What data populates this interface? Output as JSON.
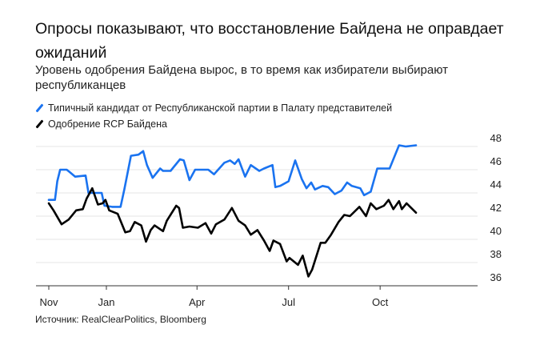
{
  "title": "Опросы показывают, что восстановление Байдена не оправдает ожиданий",
  "subtitle": "Уровень одобрения Байдена вырос, в то время как избиратели выбирают республиканцев",
  "source": "Источник: RealClearPolitics, Bloomberg",
  "chart_data": {
    "type": "line",
    "title": "Опросы показывают, что восстановление Байдена не оправдает ожиданий",
    "xlabel": "",
    "ylabel": "",
    "x_unit": "days since Nov 1",
    "xlim": [
      0,
      389
    ],
    "ylim": [
      36,
      48
    ],
    "yticks": [
      36,
      38,
      40,
      42,
      44,
      46,
      48
    ],
    "xticks": [
      {
        "label": "Nov",
        "day": 0
      },
      {
        "label": "Jan",
        "day": 61
      },
      {
        "label": "Apr",
        "day": 157
      },
      {
        "label": "Jul",
        "day": 254
      },
      {
        "label": "Oct",
        "day": 351
      }
    ],
    "grid": true,
    "legend_position": "top-left",
    "series": [
      {
        "name": "Типичный кандидат от Республиканской партии в Палату представителей",
        "color": "#1a73f0",
        "x": [
          0,
          6.5,
          9,
          12,
          19,
          22,
          28,
          39,
          42,
          56,
          59,
          67,
          76,
          80,
          87,
          95,
          100,
          104,
          110,
          118,
          121,
          129,
          139,
          143,
          149,
          155,
          169,
          175,
          186,
          192,
          197,
          201,
          208,
          214,
          223,
          228,
          237,
          240,
          245,
          254,
          261,
          268,
          273,
          278,
          282,
          290,
          296,
          303,
          310,
          316,
          321,
          330,
          334,
          341,
          348,
          361,
          371,
          378,
          389
        ],
        "values": [
          43.4,
          43.4,
          45.0,
          46.0,
          46.0,
          45.8,
          45.4,
          45.5,
          44.0,
          44.0,
          42.9,
          42.8,
          42.8,
          44.3,
          47.2,
          47.3,
          47.6,
          46.4,
          45.3,
          46.1,
          45.9,
          45.9,
          46.9,
          46.8,
          45.1,
          46.0,
          46.0,
          45.6,
          46.6,
          46.8,
          46.5,
          46.9,
          45.4,
          46.4,
          45.9,
          46.1,
          46.4,
          44.5,
          44.6,
          45.0,
          46.8,
          45.2,
          44.4,
          44.9,
          44.3,
          44.6,
          44.5,
          43.9,
          44.2,
          44.9,
          44.6,
          44.4,
          43.8,
          44.1,
          46.1,
          46.1,
          48.1,
          48.0,
          48.1
        ]
      },
      {
        "name": "Одобрение RCP Байдена",
        "color": "#000000",
        "x": [
          0,
          5,
          13.6,
          21,
          29,
          36,
          40,
          46,
          52,
          57,
          60,
          64,
          73,
          81,
          86,
          91,
          98,
          103,
          108,
          112,
          121,
          125,
          135,
          138,
          142,
          149,
          158,
          166,
          172,
          177,
          186,
          194,
          201,
          208,
          214,
          221,
          228,
          234,
          238,
          245,
          252,
          255,
          264,
          269,
          275,
          279,
          288,
          293,
          299,
          307,
          313,
          319,
          329,
          336,
          341,
          347,
          355,
          360,
          365,
          371,
          374,
          379,
          389
        ],
        "values": [
          43.1,
          42.5,
          41.3,
          41.7,
          42.5,
          42.6,
          43.5,
          44.4,
          43.0,
          43.1,
          43.4,
          42.5,
          42.2,
          40.6,
          40.7,
          41.5,
          41.2,
          39.8,
          40.8,
          41.2,
          40.7,
          41.6,
          42.9,
          42.7,
          41.0,
          41.1,
          41.0,
          41.4,
          40.5,
          41.3,
          41.7,
          42.7,
          41.6,
          41.2,
          40.4,
          40.8,
          39.9,
          39.0,
          39.9,
          39.6,
          38.1,
          38.4,
          37.8,
          38.6,
          36.8,
          37.4,
          39.7,
          39.7,
          40.4,
          41.5,
          42.1,
          42.0,
          42.8,
          42.0,
          43.1,
          42.6,
          42.9,
          43.4,
          42.6,
          43.3,
          42.6,
          43.1,
          42.3
        ]
      }
    ]
  }
}
